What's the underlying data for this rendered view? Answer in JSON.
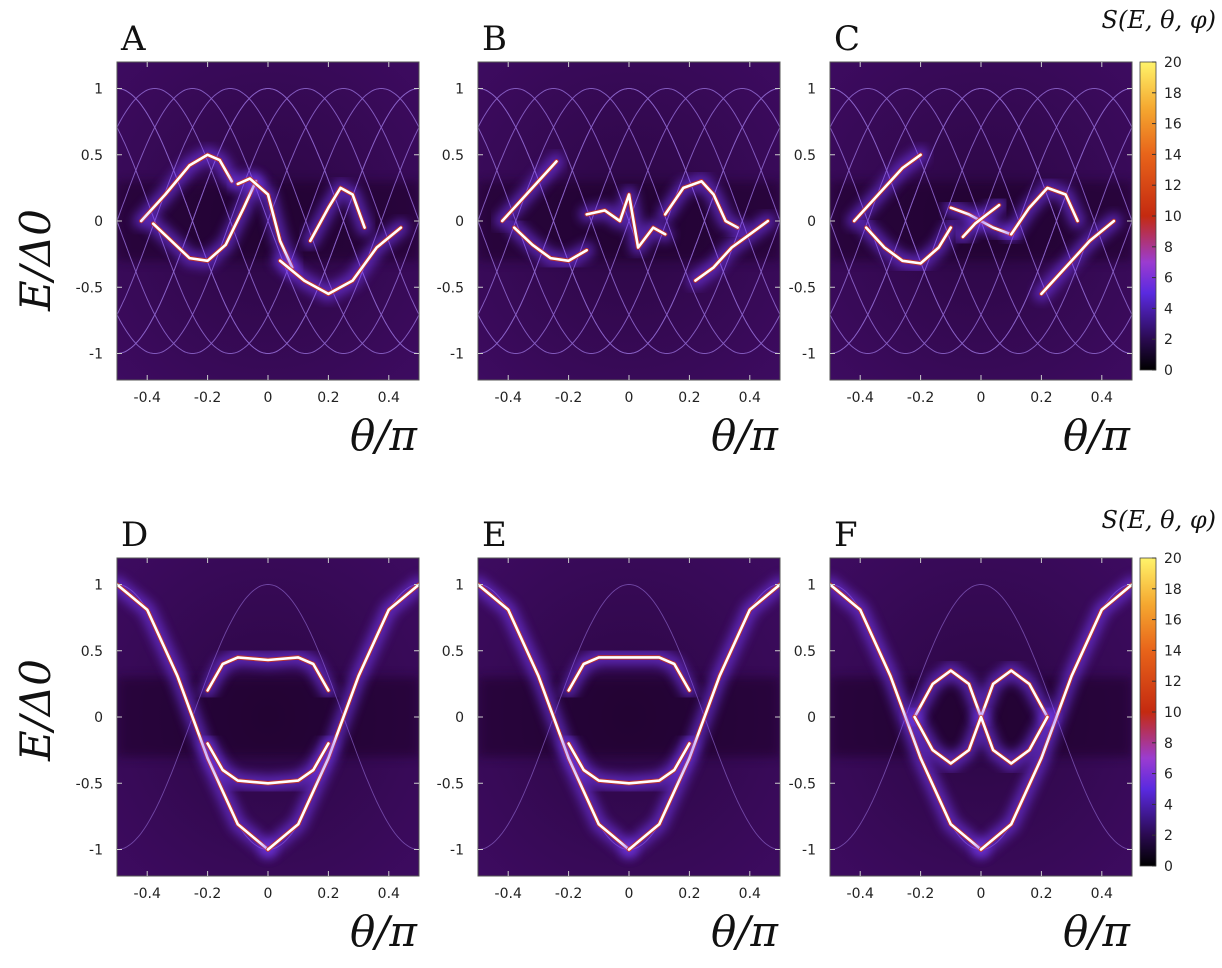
{
  "figure": {
    "colorbar_title": "S(E, θ, φ)",
    "xlabel": "θ/π",
    "ylabel": "E/Δ0"
  },
  "colors": {
    "background_dark": "#1a0426",
    "background_mid": "#3a0a5a",
    "guide_line": "#8a62c8",
    "glow": "#7a3cff",
    "core": "#ffffff",
    "hot": "#d43a10"
  },
  "chart_data": [
    {
      "type": "heatmap",
      "panel_label": "A",
      "xlabel": "θ/π",
      "ylabel": "E/Δ0",
      "xlim": [
        -0.5,
        0.5
      ],
      "ylim": [
        -1.2,
        1.2
      ],
      "xticks": [
        "-0.4",
        "-0.2",
        "0",
        "0.2",
        "0.4"
      ],
      "yticks": [
        "-1",
        "-0.5",
        "0",
        "0.5",
        "1"
      ],
      "guide_curves": "multiple shifted cosine arcs |E| <= 1",
      "bound_states": [
        {
          "x": [
            -0.42,
            -0.34,
            -0.26,
            -0.2,
            -0.16,
            -0.12
          ],
          "y": [
            0.0,
            0.2,
            0.42,
            0.5,
            0.46,
            0.3
          ]
        },
        {
          "x": [
            -0.38,
            -0.32,
            -0.26,
            -0.2,
            -0.14,
            -0.08,
            -0.04
          ],
          "y": [
            -0.02,
            -0.15,
            -0.28,
            -0.3,
            -0.18,
            0.1,
            0.3
          ]
        },
        {
          "x": [
            -0.1,
            -0.06,
            0.0,
            0.04,
            0.08
          ],
          "y": [
            0.28,
            0.32,
            0.2,
            -0.15,
            -0.35
          ]
        },
        {
          "x": [
            0.04,
            0.12,
            0.2,
            0.28,
            0.36,
            0.44
          ],
          "y": [
            -0.3,
            -0.45,
            -0.55,
            -0.45,
            -0.2,
            -0.05
          ]
        },
        {
          "x": [
            0.14,
            0.2,
            0.24,
            0.28,
            0.32
          ],
          "y": [
            -0.15,
            0.1,
            0.25,
            0.2,
            -0.05
          ]
        }
      ]
    },
    {
      "type": "heatmap",
      "panel_label": "B",
      "xlabel": "θ/π",
      "ylabel": "E/Δ0",
      "xlim": [
        -0.5,
        0.5
      ],
      "ylim": [
        -1.2,
        1.2
      ],
      "xticks": [
        "-0.4",
        "-0.2",
        "0",
        "0.2",
        "0.4"
      ],
      "yticks": [
        "-1",
        "-0.5",
        "0",
        "0.5",
        "1"
      ],
      "guide_curves": "multiple shifted cosine arcs |E| <= 1",
      "bound_states": [
        {
          "x": [
            -0.42,
            -0.36,
            -0.3,
            -0.24
          ],
          "y": [
            0.0,
            0.15,
            0.3,
            0.45
          ]
        },
        {
          "x": [
            -0.38,
            -0.32,
            -0.26,
            -0.2,
            -0.14
          ],
          "y": [
            -0.05,
            -0.18,
            -0.28,
            -0.3,
            -0.22
          ]
        },
        {
          "x": [
            -0.14,
            -0.08,
            -0.03,
            0.0,
            0.03,
            0.08,
            0.12
          ],
          "y": [
            0.05,
            0.08,
            0.0,
            0.2,
            -0.2,
            -0.05,
            -0.1
          ]
        },
        {
          "x": [
            0.12,
            0.18,
            0.24,
            0.28,
            0.32,
            0.36
          ],
          "y": [
            0.05,
            0.25,
            0.3,
            0.2,
            0.0,
            -0.05
          ]
        },
        {
          "x": [
            0.22,
            0.28,
            0.34,
            0.4,
            0.46
          ],
          "y": [
            -0.45,
            -0.35,
            -0.2,
            -0.1,
            0.0
          ]
        }
      ]
    },
    {
      "type": "heatmap",
      "panel_label": "C",
      "xlabel": "θ/π",
      "ylabel": "E/Δ0",
      "xlim": [
        -0.5,
        0.5
      ],
      "ylim": [
        -1.2,
        1.2
      ],
      "xticks": [
        "-0.4",
        "-0.2",
        "0",
        "0.2",
        "0.4"
      ],
      "yticks": [
        "-1",
        "-0.5",
        "0",
        "0.5",
        "1"
      ],
      "colorbar": {
        "min": 0,
        "max": 20,
        "ticks": [
          "0",
          "2",
          "4",
          "6",
          "8",
          "10",
          "12",
          "14",
          "16",
          "18",
          "20"
        ]
      },
      "guide_curves": "multiple shifted cosine arcs |E| <= 1",
      "bound_states": [
        {
          "x": [
            -0.42,
            -0.34,
            -0.26,
            -0.2
          ],
          "y": [
            0.0,
            0.2,
            0.4,
            0.5
          ]
        },
        {
          "x": [
            -0.38,
            -0.32,
            -0.26,
            -0.2,
            -0.14,
            -0.1
          ],
          "y": [
            -0.05,
            -0.2,
            -0.3,
            -0.32,
            -0.2,
            -0.05
          ]
        },
        {
          "x": [
            -0.1,
            -0.04,
            0.0,
            0.04,
            0.1
          ],
          "y": [
            0.1,
            0.05,
            0.0,
            -0.05,
            -0.1
          ]
        },
        {
          "x": [
            -0.06,
            -0.02,
            0.02,
            0.06
          ],
          "y": [
            -0.12,
            -0.02,
            0.05,
            0.12
          ]
        },
        {
          "x": [
            0.1,
            0.16,
            0.22,
            0.28,
            0.32
          ],
          "y": [
            -0.1,
            0.1,
            0.25,
            0.2,
            0.0
          ]
        },
        {
          "x": [
            0.2,
            0.28,
            0.36,
            0.44
          ],
          "y": [
            -0.55,
            -0.35,
            -0.15,
            0.0
          ]
        }
      ]
    },
    {
      "type": "heatmap",
      "panel_label": "D",
      "xlabel": "θ/π",
      "ylabel": "E/Δ0",
      "xlim": [
        -0.5,
        0.5
      ],
      "ylim": [
        -1.2,
        1.2
      ],
      "xticks": [
        "-0.4",
        "-0.2",
        "0",
        "0.2",
        "0.4"
      ],
      "yticks": [
        "-1",
        "-0.5",
        "0",
        "0.5",
        "1"
      ],
      "guide_curves": "E = ±cos(2θ)",
      "bound_states": [
        {
          "x": [
            -0.5,
            -0.4,
            -0.3,
            -0.25,
            -0.2,
            -0.1,
            0.0
          ],
          "y": [
            1.0,
            0.81,
            0.31,
            0.0,
            -0.31,
            -0.81,
            -1.0
          ]
        },
        {
          "x": [
            0.0,
            0.1,
            0.2,
            0.25,
            0.3,
            0.4,
            0.5
          ],
          "y": [
            -1.0,
            -0.81,
            -0.31,
            0.0,
            0.31,
            0.81,
            1.0
          ]
        },
        {
          "x": [
            -0.2,
            -0.15,
            -0.1,
            0.0,
            0.1,
            0.15,
            0.2
          ],
          "y": [
            0.2,
            0.4,
            0.45,
            0.43,
            0.45,
            0.4,
            0.2
          ]
        },
        {
          "x": [
            -0.2,
            -0.15,
            -0.1,
            0.0,
            0.1,
            0.15,
            0.2
          ],
          "y": [
            -0.2,
            -0.4,
            -0.48,
            -0.5,
            -0.48,
            -0.4,
            -0.2
          ]
        }
      ]
    },
    {
      "type": "heatmap",
      "panel_label": "E",
      "xlabel": "θ/π",
      "ylabel": "E/Δ0",
      "xlim": [
        -0.5,
        0.5
      ],
      "ylim": [
        -1.2,
        1.2
      ],
      "xticks": [
        "-0.4",
        "-0.2",
        "0",
        "0.2",
        "0.4"
      ],
      "yticks": [
        "-1",
        "-0.5",
        "0",
        "0.5",
        "1"
      ],
      "guide_curves": "E = ±cos(2θ)",
      "bound_states": [
        {
          "x": [
            -0.5,
            -0.4,
            -0.3,
            -0.25,
            -0.2,
            -0.1,
            0.0
          ],
          "y": [
            1.0,
            0.81,
            0.31,
            0.0,
            -0.31,
            -0.81,
            -1.0
          ]
        },
        {
          "x": [
            0.0,
            0.1,
            0.2,
            0.25,
            0.3,
            0.4,
            0.5
          ],
          "y": [
            -1.0,
            -0.81,
            -0.31,
            0.0,
            0.31,
            0.81,
            1.0
          ]
        },
        {
          "x": [
            -0.2,
            -0.15,
            -0.1,
            0.0,
            0.1,
            0.15,
            0.2
          ],
          "y": [
            0.2,
            0.4,
            0.45,
            0.45,
            0.45,
            0.4,
            0.2
          ]
        },
        {
          "x": [
            -0.2,
            -0.15,
            -0.1,
            0.0,
            0.1,
            0.15,
            0.2
          ],
          "y": [
            -0.2,
            -0.4,
            -0.48,
            -0.5,
            -0.48,
            -0.4,
            -0.2
          ]
        }
      ]
    },
    {
      "type": "heatmap",
      "panel_label": "F",
      "xlabel": "θ/π",
      "ylabel": "E/Δ0",
      "xlim": [
        -0.5,
        0.5
      ],
      "ylim": [
        -1.2,
        1.2
      ],
      "xticks": [
        "-0.4",
        "-0.2",
        "0",
        "0.2",
        "0.4"
      ],
      "yticks": [
        "-1",
        "-0.5",
        "0",
        "0.5",
        "1"
      ],
      "colorbar": {
        "min": 0,
        "max": 20,
        "ticks": [
          "0",
          "2",
          "4",
          "6",
          "8",
          "10",
          "12",
          "14",
          "16",
          "18",
          "20"
        ]
      },
      "guide_curves": "E = ±cos(2θ)",
      "bound_states": [
        {
          "x": [
            -0.5,
            -0.4,
            -0.3,
            -0.25,
            -0.2,
            -0.1,
            0.0
          ],
          "y": [
            1.0,
            0.81,
            0.31,
            0.0,
            -0.31,
            -0.81,
            -1.0
          ]
        },
        {
          "x": [
            0.0,
            0.1,
            0.2,
            0.25,
            0.3,
            0.4,
            0.5
          ],
          "y": [
            -1.0,
            -0.81,
            -0.31,
            0.0,
            0.31,
            0.81,
            1.0
          ]
        },
        {
          "x": [
            -0.22,
            -0.16,
            -0.1,
            -0.04,
            0.0,
            0.04,
            0.1,
            0.16,
            0.22
          ],
          "y": [
            0.0,
            0.25,
            0.35,
            0.25,
            0.0,
            0.25,
            0.35,
            0.25,
            0.0
          ]
        },
        {
          "x": [
            -0.22,
            -0.16,
            -0.1,
            -0.04,
            0.0,
            0.04,
            0.1,
            0.16,
            0.22
          ],
          "y": [
            0.0,
            -0.25,
            -0.35,
            -0.25,
            0.0,
            -0.25,
            -0.35,
            -0.25,
            0.0
          ]
        }
      ]
    }
  ]
}
